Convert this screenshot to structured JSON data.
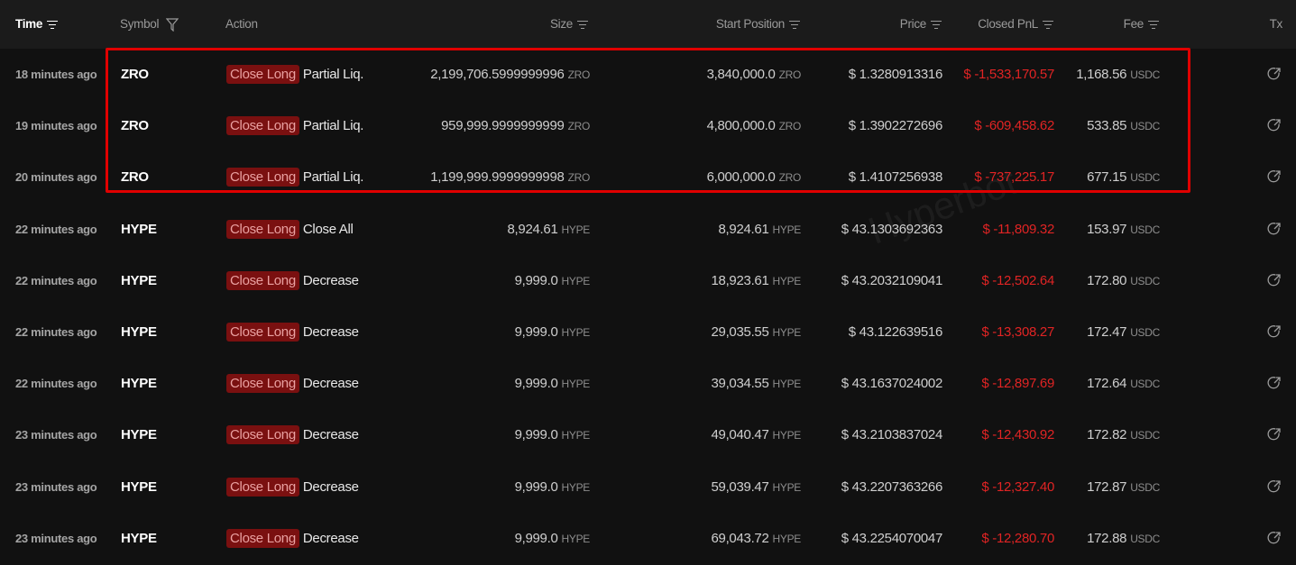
{
  "header": {
    "time": "Time",
    "symbol": "Symbol",
    "action": "Action",
    "size": "Size",
    "start_position": "Start Position",
    "price": "Price",
    "closed_pnl": "Closed PnL",
    "fee": "Fee",
    "tx": "Tx"
  },
  "colors": {
    "pnl_negative": "#e02424",
    "badge_bg": "#7a1010",
    "highlight_box": "#e00000"
  },
  "watermark": "Hyperbot",
  "rows": [
    {
      "time": "18 minutes ago",
      "symbol": "ZRO",
      "badge": "Close Long",
      "type": "Partial Liq.",
      "size": "2,199,706.5999999996",
      "size_unit": "ZRO",
      "start": "3,840,000.0",
      "start_unit": "ZRO",
      "price": "$ 1.3280913316",
      "pnl": "$ -1,533,170.57",
      "fee": "1,168.56",
      "fee_unit": "USDC",
      "highlighted": true
    },
    {
      "time": "19 minutes ago",
      "symbol": "ZRO",
      "badge": "Close Long",
      "type": "Partial Liq.",
      "size": "959,999.9999999999",
      "size_unit": "ZRO",
      "start": "4,800,000.0",
      "start_unit": "ZRO",
      "price": "$ 1.3902272696",
      "pnl": "$ -609,458.62",
      "fee": "533.85",
      "fee_unit": "USDC",
      "highlighted": true
    },
    {
      "time": "20 minutes ago",
      "symbol": "ZRO",
      "badge": "Close Long",
      "type": "Partial Liq.",
      "size": "1,199,999.9999999998",
      "size_unit": "ZRO",
      "start": "6,000,000.0",
      "start_unit": "ZRO",
      "price": "$ 1.4107256938",
      "pnl": "$ -737,225.17",
      "fee": "677.15",
      "fee_unit": "USDC",
      "highlighted": true
    },
    {
      "time": "22 minutes ago",
      "symbol": "HYPE",
      "badge": "Close Long",
      "type": "Close All",
      "size": "8,924.61",
      "size_unit": "HYPE",
      "start": "8,924.61",
      "start_unit": "HYPE",
      "price": "$ 43.1303692363",
      "pnl": "$ -11,809.32",
      "fee": "153.97",
      "fee_unit": "USDC"
    },
    {
      "time": "22 minutes ago",
      "symbol": "HYPE",
      "badge": "Close Long",
      "type": "Decrease",
      "size": "9,999.0",
      "size_unit": "HYPE",
      "start": "18,923.61",
      "start_unit": "HYPE",
      "price": "$ 43.2032109041",
      "pnl": "$ -12,502.64",
      "fee": "172.80",
      "fee_unit": "USDC"
    },
    {
      "time": "22 minutes ago",
      "symbol": "HYPE",
      "badge": "Close Long",
      "type": "Decrease",
      "size": "9,999.0",
      "size_unit": "HYPE",
      "start": "29,035.55",
      "start_unit": "HYPE",
      "price": "$ 43.122639516",
      "pnl": "$ -13,308.27",
      "fee": "172.47",
      "fee_unit": "USDC"
    },
    {
      "time": "22 minutes ago",
      "symbol": "HYPE",
      "badge": "Close Long",
      "type": "Decrease",
      "size": "9,999.0",
      "size_unit": "HYPE",
      "start": "39,034.55",
      "start_unit": "HYPE",
      "price": "$ 43.1637024002",
      "pnl": "$ -12,897.69",
      "fee": "172.64",
      "fee_unit": "USDC"
    },
    {
      "time": "23 minutes ago",
      "symbol": "HYPE",
      "badge": "Close Long",
      "type": "Decrease",
      "size": "9,999.0",
      "size_unit": "HYPE",
      "start": "49,040.47",
      "start_unit": "HYPE",
      "price": "$ 43.2103837024",
      "pnl": "$ -12,430.92",
      "fee": "172.82",
      "fee_unit": "USDC"
    },
    {
      "time": "23 minutes ago",
      "symbol": "HYPE",
      "badge": "Close Long",
      "type": "Decrease",
      "size": "9,999.0",
      "size_unit": "HYPE",
      "start": "59,039.47",
      "start_unit": "HYPE",
      "price": "$ 43.2207363266",
      "pnl": "$ -12,327.40",
      "fee": "172.87",
      "fee_unit": "USDC"
    },
    {
      "time": "23 minutes ago",
      "symbol": "HYPE",
      "badge": "Close Long",
      "type": "Decrease",
      "size": "9,999.0",
      "size_unit": "HYPE",
      "start": "69,043.72",
      "start_unit": "HYPE",
      "price": "$ 43.2254070047",
      "pnl": "$ -12,280.70",
      "fee": "172.88",
      "fee_unit": "USDC"
    }
  ]
}
